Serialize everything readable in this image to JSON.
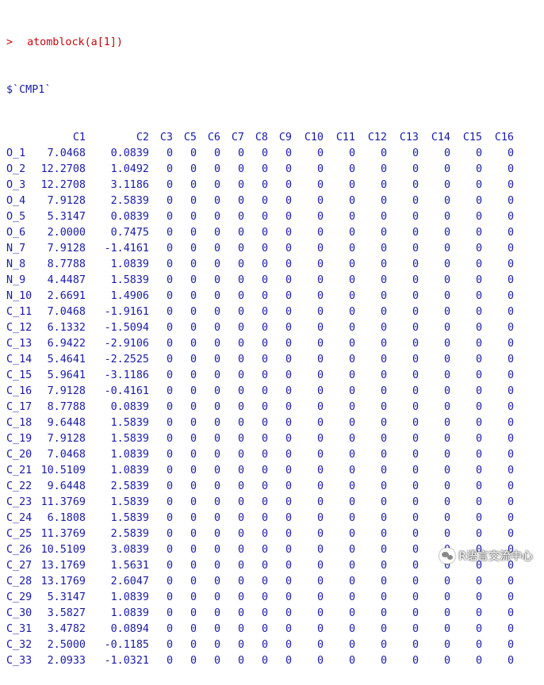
{
  "console": {
    "prompt": ">",
    "command": "atomblock(a[1])",
    "list_name": "$`CMP1`"
  },
  "table": {
    "columns": [
      "C1",
      "C2",
      "C3",
      "C5",
      "C6",
      "C7",
      "C8",
      "C9",
      "C10",
      "C11",
      "C12",
      "C13",
      "C14",
      "C15",
      "C16"
    ],
    "rows": [
      {
        "name": "O_1",
        "v": [
          "7.0468",
          "0.0839",
          "0",
          "0",
          "0",
          "0",
          "0",
          "0",
          "0",
          "0",
          "0",
          "0",
          "0",
          "0",
          "0"
        ]
      },
      {
        "name": "O_2",
        "v": [
          "12.2708",
          "1.0492",
          "0",
          "0",
          "0",
          "0",
          "0",
          "0",
          "0",
          "0",
          "0",
          "0",
          "0",
          "0",
          "0"
        ]
      },
      {
        "name": "O_3",
        "v": [
          "12.2708",
          "3.1186",
          "0",
          "0",
          "0",
          "0",
          "0",
          "0",
          "0",
          "0",
          "0",
          "0",
          "0",
          "0",
          "0"
        ]
      },
      {
        "name": "O_4",
        "v": [
          "7.9128",
          "2.5839",
          "0",
          "0",
          "0",
          "0",
          "0",
          "0",
          "0",
          "0",
          "0",
          "0",
          "0",
          "0",
          "0"
        ]
      },
      {
        "name": "O_5",
        "v": [
          "5.3147",
          "0.0839",
          "0",
          "0",
          "0",
          "0",
          "0",
          "0",
          "0",
          "0",
          "0",
          "0",
          "0",
          "0",
          "0"
        ]
      },
      {
        "name": "O_6",
        "v": [
          "2.0000",
          "0.7475",
          "0",
          "0",
          "0",
          "0",
          "0",
          "0",
          "0",
          "0",
          "0",
          "0",
          "0",
          "0",
          "0"
        ]
      },
      {
        "name": "N_7",
        "v": [
          "7.9128",
          "-1.4161",
          "0",
          "0",
          "0",
          "0",
          "0",
          "0",
          "0",
          "0",
          "0",
          "0",
          "0",
          "0",
          "0"
        ]
      },
      {
        "name": "N_8",
        "v": [
          "8.7788",
          "1.0839",
          "0",
          "0",
          "0",
          "0",
          "0",
          "0",
          "0",
          "0",
          "0",
          "0",
          "0",
          "0",
          "0"
        ]
      },
      {
        "name": "N_9",
        "v": [
          "4.4487",
          "1.5839",
          "0",
          "0",
          "0",
          "0",
          "0",
          "0",
          "0",
          "0",
          "0",
          "0",
          "0",
          "0",
          "0"
        ]
      },
      {
        "name": "N_10",
        "v": [
          "2.6691",
          "1.4906",
          "0",
          "0",
          "0",
          "0",
          "0",
          "0",
          "0",
          "0",
          "0",
          "0",
          "0",
          "0",
          "0"
        ]
      },
      {
        "name": "C_11",
        "v": [
          "7.0468",
          "-1.9161",
          "0",
          "0",
          "0",
          "0",
          "0",
          "0",
          "0",
          "0",
          "0",
          "0",
          "0",
          "0",
          "0"
        ]
      },
      {
        "name": "C_12",
        "v": [
          "6.1332",
          "-1.5094",
          "0",
          "0",
          "0",
          "0",
          "0",
          "0",
          "0",
          "0",
          "0",
          "0",
          "0",
          "0",
          "0"
        ]
      },
      {
        "name": "C_13",
        "v": [
          "6.9422",
          "-2.9106",
          "0",
          "0",
          "0",
          "0",
          "0",
          "0",
          "0",
          "0",
          "0",
          "0",
          "0",
          "0",
          "0"
        ]
      },
      {
        "name": "C_14",
        "v": [
          "5.4641",
          "-2.2525",
          "0",
          "0",
          "0",
          "0",
          "0",
          "0",
          "0",
          "0",
          "0",
          "0",
          "0",
          "0",
          "0"
        ]
      },
      {
        "name": "C_15",
        "v": [
          "5.9641",
          "-3.1186",
          "0",
          "0",
          "0",
          "0",
          "0",
          "0",
          "0",
          "0",
          "0",
          "0",
          "0",
          "0",
          "0"
        ]
      },
      {
        "name": "C_16",
        "v": [
          "7.9128",
          "-0.4161",
          "0",
          "0",
          "0",
          "0",
          "0",
          "0",
          "0",
          "0",
          "0",
          "0",
          "0",
          "0",
          "0"
        ]
      },
      {
        "name": "C_17",
        "v": [
          "8.7788",
          "0.0839",
          "0",
          "0",
          "0",
          "0",
          "0",
          "0",
          "0",
          "0",
          "0",
          "0",
          "0",
          "0",
          "0"
        ]
      },
      {
        "name": "C_18",
        "v": [
          "9.6448",
          "1.5839",
          "0",
          "0",
          "0",
          "0",
          "0",
          "0",
          "0",
          "0",
          "0",
          "0",
          "0",
          "0",
          "0"
        ]
      },
      {
        "name": "C_19",
        "v": [
          "7.9128",
          "1.5839",
          "0",
          "0",
          "0",
          "0",
          "0",
          "0",
          "0",
          "0",
          "0",
          "0",
          "0",
          "0",
          "0"
        ]
      },
      {
        "name": "C_20",
        "v": [
          "7.0468",
          "1.0839",
          "0",
          "0",
          "0",
          "0",
          "0",
          "0",
          "0",
          "0",
          "0",
          "0",
          "0",
          "0",
          "0"
        ]
      },
      {
        "name": "C_21",
        "v": [
          "10.5109",
          "1.0839",
          "0",
          "0",
          "0",
          "0",
          "0",
          "0",
          "0",
          "0",
          "0",
          "0",
          "0",
          "0",
          "0"
        ]
      },
      {
        "name": "C_22",
        "v": [
          "9.6448",
          "2.5839",
          "0",
          "0",
          "0",
          "0",
          "0",
          "0",
          "0",
          "0",
          "0",
          "0",
          "0",
          "0",
          "0"
        ]
      },
      {
        "name": "C_23",
        "v": [
          "11.3769",
          "1.5839",
          "0",
          "0",
          "0",
          "0",
          "0",
          "0",
          "0",
          "0",
          "0",
          "0",
          "0",
          "0",
          "0"
        ]
      },
      {
        "name": "C_24",
        "v": [
          "6.1808",
          "1.5839",
          "0",
          "0",
          "0",
          "0",
          "0",
          "0",
          "0",
          "0",
          "0",
          "0",
          "0",
          "0",
          "0"
        ]
      },
      {
        "name": "C_25",
        "v": [
          "11.3769",
          "2.5839",
          "0",
          "0",
          "0",
          "0",
          "0",
          "0",
          "0",
          "0",
          "0",
          "0",
          "0",
          "0",
          "0"
        ]
      },
      {
        "name": "C_26",
        "v": [
          "10.5109",
          "3.0839",
          "0",
          "0",
          "0",
          "0",
          "0",
          "0",
          "0",
          "0",
          "0",
          "0",
          "0",
          "0",
          "0"
        ]
      },
      {
        "name": "C_27",
        "v": [
          "13.1769",
          "1.5631",
          "0",
          "0",
          "0",
          "0",
          "0",
          "0",
          "0",
          "0",
          "0",
          "0",
          "0",
          "0",
          "0"
        ]
      },
      {
        "name": "C_28",
        "v": [
          "13.1769",
          "2.6047",
          "0",
          "0",
          "0",
          "0",
          "0",
          "0",
          "0",
          "0",
          "0",
          "0",
          "0",
          "0",
          "0"
        ]
      },
      {
        "name": "C_29",
        "v": [
          "5.3147",
          "1.0839",
          "0",
          "0",
          "0",
          "0",
          "0",
          "0",
          "0",
          "0",
          "0",
          "0",
          "0",
          "0",
          "0"
        ]
      },
      {
        "name": "C_30",
        "v": [
          "3.5827",
          "1.0839",
          "0",
          "0",
          "0",
          "0",
          "0",
          "0",
          "0",
          "0",
          "0",
          "0",
          "0",
          "0",
          "0"
        ]
      },
      {
        "name": "C_31",
        "v": [
          "3.4782",
          "0.0894",
          "0",
          "0",
          "0",
          "0",
          "0",
          "0",
          "0",
          "0",
          "0",
          "0",
          "0",
          "0",
          "0"
        ]
      },
      {
        "name": "C_32",
        "v": [
          "2.5000",
          "-0.1185",
          "0",
          "0",
          "0",
          "0",
          "0",
          "0",
          "0",
          "0",
          "0",
          "0",
          "0",
          "0",
          "0"
        ]
      },
      {
        "name": "C_33",
        "v": [
          "2.0933",
          "-1.0321",
          "0",
          "0",
          "0",
          "0",
          "0",
          "0",
          "0",
          "0",
          "0",
          "0",
          "0",
          "0",
          "0"
        ]
      }
    ]
  },
  "watermark": {
    "text": "R语言交流中心",
    "icon": "wechat-icon"
  },
  "colors": {
    "command": "#c5060b",
    "output": "#1a1aa6",
    "background": "#ffffff"
  }
}
